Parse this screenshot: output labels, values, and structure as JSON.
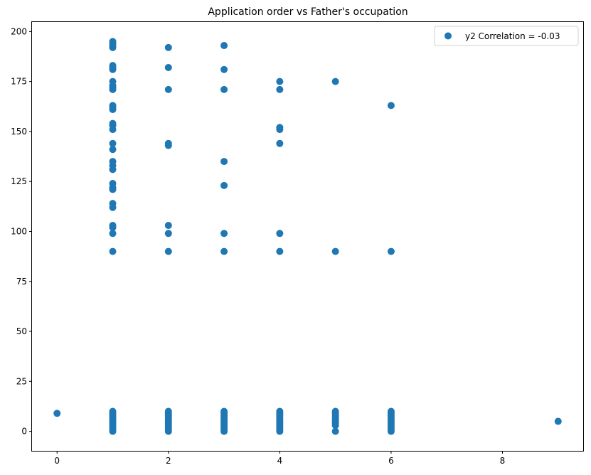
{
  "chart_data": {
    "type": "scatter",
    "title": "Application order vs Father's occupation",
    "xlabel": "",
    "ylabel": "",
    "xlim": [
      -0.45,
      9.45
    ],
    "ylim": [
      -9.75,
      204.75
    ],
    "xticks": [
      0,
      2,
      4,
      6,
      8
    ],
    "yticks": [
      0,
      25,
      50,
      75,
      100,
      125,
      150,
      175,
      200
    ],
    "grid": false,
    "legend_position": "top-right",
    "color": "#1f77b4",
    "series": [
      {
        "name": "y2 Correlation = -0.03",
        "points": [
          [
            0,
            9
          ],
          [
            1,
            0
          ],
          [
            1,
            1
          ],
          [
            1,
            2
          ],
          [
            1,
            3
          ],
          [
            1,
            4
          ],
          [
            1,
            5
          ],
          [
            1,
            6
          ],
          [
            1,
            7
          ],
          [
            1,
            8
          ],
          [
            1,
            9
          ],
          [
            1,
            10
          ],
          [
            1,
            90
          ],
          [
            1,
            99
          ],
          [
            1,
            102
          ],
          [
            1,
            103
          ],
          [
            1,
            112
          ],
          [
            1,
            114
          ],
          [
            1,
            121
          ],
          [
            1,
            122
          ],
          [
            1,
            124
          ],
          [
            1,
            131
          ],
          [
            1,
            133
          ],
          [
            1,
            135
          ],
          [
            1,
            141
          ],
          [
            1,
            144
          ],
          [
            1,
            151
          ],
          [
            1,
            153
          ],
          [
            1,
            154
          ],
          [
            1,
            161
          ],
          [
            1,
            162
          ],
          [
            1,
            163
          ],
          [
            1,
            171
          ],
          [
            1,
            172
          ],
          [
            1,
            173
          ],
          [
            1,
            175
          ],
          [
            1,
            181
          ],
          [
            1,
            182
          ],
          [
            1,
            183
          ],
          [
            1,
            192
          ],
          [
            1,
            193
          ],
          [
            1,
            194
          ],
          [
            1,
            195
          ],
          [
            2,
            0
          ],
          [
            2,
            1
          ],
          [
            2,
            2
          ],
          [
            2,
            3
          ],
          [
            2,
            4
          ],
          [
            2,
            5
          ],
          [
            2,
            6
          ],
          [
            2,
            7
          ],
          [
            2,
            8
          ],
          [
            2,
            9
          ],
          [
            2,
            10
          ],
          [
            2,
            90
          ],
          [
            2,
            99
          ],
          [
            2,
            103
          ],
          [
            2,
            143
          ],
          [
            2,
            144
          ],
          [
            2,
            171
          ],
          [
            2,
            182
          ],
          [
            2,
            192
          ],
          [
            3,
            0
          ],
          [
            3,
            1
          ],
          [
            3,
            2
          ],
          [
            3,
            3
          ],
          [
            3,
            4
          ],
          [
            3,
            5
          ],
          [
            3,
            6
          ],
          [
            3,
            7
          ],
          [
            3,
            8
          ],
          [
            3,
            9
          ],
          [
            3,
            10
          ],
          [
            3,
            90
          ],
          [
            3,
            99
          ],
          [
            3,
            123
          ],
          [
            3,
            135
          ],
          [
            3,
            171
          ],
          [
            3,
            181
          ],
          [
            3,
            193
          ],
          [
            4,
            0
          ],
          [
            4,
            1
          ],
          [
            4,
            2
          ],
          [
            4,
            3
          ],
          [
            4,
            4
          ],
          [
            4,
            5
          ],
          [
            4,
            6
          ],
          [
            4,
            7
          ],
          [
            4,
            8
          ],
          [
            4,
            9
          ],
          [
            4,
            10
          ],
          [
            4,
            90
          ],
          [
            4,
            99
          ],
          [
            4,
            144
          ],
          [
            4,
            151
          ],
          [
            4,
            152
          ],
          [
            4,
            171
          ],
          [
            4,
            175
          ],
          [
            5,
            0
          ],
          [
            5,
            3
          ],
          [
            5,
            4
          ],
          [
            5,
            5
          ],
          [
            5,
            6
          ],
          [
            5,
            7
          ],
          [
            5,
            8
          ],
          [
            5,
            9
          ],
          [
            5,
            10
          ],
          [
            5,
            90
          ],
          [
            5,
            175
          ],
          [
            6,
            0
          ],
          [
            6,
            1
          ],
          [
            6,
            2
          ],
          [
            6,
            3
          ],
          [
            6,
            4
          ],
          [
            6,
            5
          ],
          [
            6,
            6
          ],
          [
            6,
            7
          ],
          [
            6,
            8
          ],
          [
            6,
            9
          ],
          [
            6,
            10
          ],
          [
            6,
            90
          ],
          [
            6,
            163
          ],
          [
            9,
            5
          ]
        ]
      }
    ]
  }
}
